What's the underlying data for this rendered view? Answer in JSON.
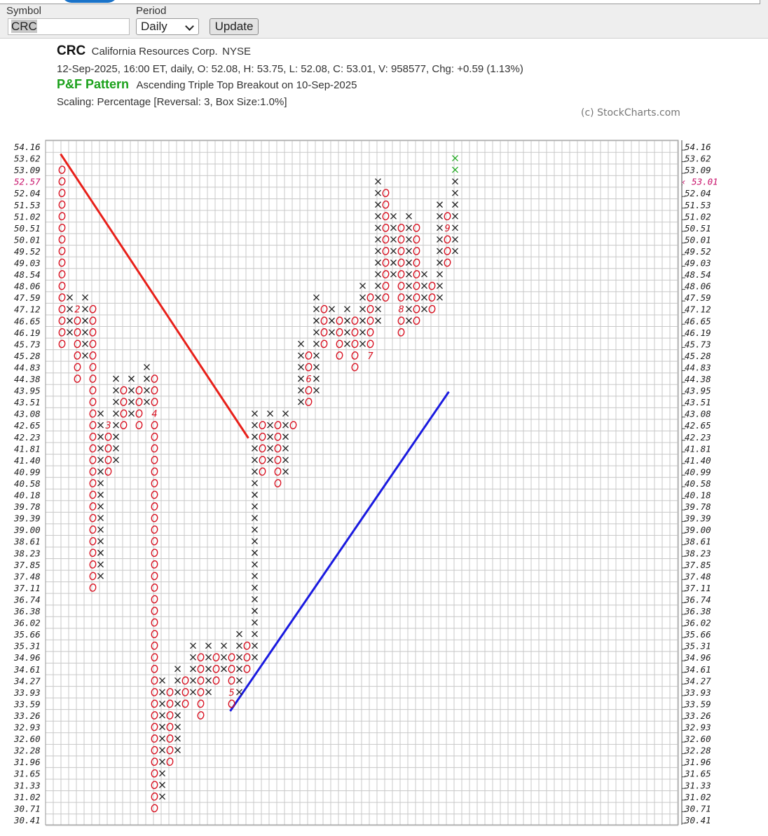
{
  "form": {
    "symbol_label": "Symbol",
    "symbol_value": "CRC",
    "period_label": "Period",
    "period_value": "Daily",
    "update_label": "Update"
  },
  "header": {
    "ticker": "CRC",
    "company": "California Resources Corp.",
    "exchange": "NYSE",
    "quote": "12-Sep-2025, 16:00 ET, daily, O: 52.08, H: 53.75, L: 52.08, C: 53.01, V: 958577, Chg: +0.59 (1.13%)",
    "pf_label": "P&F Pattern",
    "pattern": "Ascending Triple Top Breakout on 10-Sep-2025",
    "scaling": "Scaling: Percentage [Reversal: 3, Box Size:1.0%]",
    "copyright": "(c) StockCharts.com"
  },
  "chart_data": {
    "type": "point-and-figure",
    "price_levels": [
      "54.16",
      "53.62",
      "53.09",
      "52.57",
      "52.04",
      "51.53",
      "51.02",
      "50.51",
      "50.01",
      "49.52",
      "49.03",
      "48.54",
      "48.06",
      "47.59",
      "47.12",
      "46.65",
      "46.19",
      "45.73",
      "45.28",
      "44.83",
      "44.38",
      "43.95",
      "43.51",
      "43.08",
      "42.65",
      "42.23",
      "41.81",
      "41.40",
      "40.99",
      "40.58",
      "40.18",
      "39.78",
      "39.39",
      "39.00",
      "38.61",
      "38.23",
      "37.85",
      "37.48",
      "37.11",
      "36.74",
      "36.38",
      "36.02",
      "35.66",
      "35.31",
      "34.96",
      "34.61",
      "34.27",
      "33.93",
      "33.59",
      "33.26",
      "32.93",
      "32.60",
      "32.28",
      "31.96",
      "31.65",
      "31.33",
      "31.02",
      "30.71",
      "30.41"
    ],
    "highlight_left_level": "52.57",
    "last_price_label": "‹ 53.01",
    "columns": [
      {
        "t": "O",
        "top": 53.09,
        "bot": 45.73
      },
      {
        "t": "X",
        "top": 47.59,
        "bot": 46.19
      },
      {
        "t": "O",
        "top": 47.12,
        "bot": 44.38,
        "m": [
          [
            47.12,
            "2"
          ]
        ]
      },
      {
        "t": "X",
        "top": 47.59,
        "bot": 45.28
      },
      {
        "t": "O",
        "top": 47.12,
        "bot": 37.11
      },
      {
        "t": "X",
        "top": 43.08,
        "bot": 37.48
      },
      {
        "t": "O",
        "top": 42.65,
        "bot": 40.99,
        "m": [
          [
            42.65,
            "3"
          ]
        ]
      },
      {
        "t": "X",
        "top": 44.38,
        "bot": 41.4
      },
      {
        "t": "O",
        "top": 43.95,
        "bot": 42.65
      },
      {
        "t": "X",
        "top": 44.38,
        "bot": 43.08
      },
      {
        "t": "O",
        "top": 43.95,
        "bot": 42.65
      },
      {
        "t": "X",
        "top": 44.83,
        "bot": 43.51
      },
      {
        "t": "O",
        "top": 44.38,
        "bot": 30.71,
        "m": [
          [
            43.08,
            "4"
          ]
        ]
      },
      {
        "t": "X",
        "top": 34.27,
        "bot": 31.02
      },
      {
        "t": "O",
        "top": 33.93,
        "bot": 31.96
      },
      {
        "t": "X",
        "top": 34.61,
        "bot": 32.28
      },
      {
        "t": "O",
        "top": 34.27,
        "bot": 33.59
      },
      {
        "t": "X",
        "top": 35.31,
        "bot": 33.93
      },
      {
        "t": "O",
        "top": 34.96,
        "bot": 33.26
      },
      {
        "t": "X",
        "top": 35.31,
        "bot": 33.93
      },
      {
        "t": "O",
        "top": 34.96,
        "bot": 34.27
      },
      {
        "t": "X",
        "top": 35.31,
        "bot": 34.61
      },
      {
        "t": "O",
        "top": 34.96,
        "bot": 33.59,
        "m": [
          [
            33.93,
            "5"
          ]
        ]
      },
      {
        "t": "X",
        "top": 35.66,
        "bot": 33.93
      },
      {
        "t": "O",
        "top": 35.31,
        "bot": 34.61
      },
      {
        "t": "X",
        "top": 43.08,
        "bot": 34.96
      },
      {
        "t": "O",
        "top": 42.65,
        "bot": 40.99
      },
      {
        "t": "X",
        "top": 43.08,
        "bot": 41.4
      },
      {
        "t": "O",
        "top": 42.65,
        "bot": 40.58
      },
      {
        "t": "X",
        "top": 43.08,
        "bot": 40.99
      },
      {
        "t": "O",
        "top": 42.65,
        "bot": 42.65
      },
      {
        "t": "X",
        "top": 45.73,
        "bot": 43.51
      },
      {
        "t": "O",
        "top": 45.28,
        "bot": 43.51,
        "m": [
          [
            44.38,
            "6"
          ]
        ]
      },
      {
        "t": "X",
        "top": 47.59,
        "bot": 43.95
      },
      {
        "t": "O",
        "top": 47.12,
        "bot": 45.73
      },
      {
        "t": "X",
        "top": 47.12,
        "bot": 46.19
      },
      {
        "t": "O",
        "top": 46.65,
        "bot": 45.28
      },
      {
        "t": "X",
        "top": 47.12,
        "bot": 45.73
      },
      {
        "t": "O",
        "top": 46.65,
        "bot": 44.83
      },
      {
        "t": "X",
        "top": 48.06,
        "bot": 45.73
      },
      {
        "t": "O",
        "top": 47.59,
        "bot": 45.28,
        "m": [
          [
            45.28,
            "7"
          ]
        ]
      },
      {
        "t": "X",
        "top": 52.57,
        "bot": 46.65
      },
      {
        "t": "O",
        "top": 52.04,
        "bot": 47.59
      },
      {
        "t": "X",
        "top": 51.02,
        "bot": 48.54
      },
      {
        "t": "O",
        "top": 50.51,
        "bot": 46.19,
        "m": [
          [
            47.12,
            "8"
          ]
        ]
      },
      {
        "t": "X",
        "top": 51.02,
        "bot": 46.65
      },
      {
        "t": "O",
        "top": 50.51,
        "bot": 46.65
      },
      {
        "t": "X",
        "top": 48.54,
        "bot": 47.12
      },
      {
        "t": "O",
        "top": 48.06,
        "bot": 47.12
      },
      {
        "t": "X",
        "top": 51.53,
        "bot": 47.59
      },
      {
        "t": "O",
        "top": 51.02,
        "bot": 49.03,
        "m": [
          [
            50.51,
            "9"
          ]
        ]
      },
      {
        "t": "X",
        "top": 53.62,
        "bot": 49.52,
        "green": [
          53.62,
          53.09
        ]
      }
    ],
    "trendlines": [
      {
        "color": "#e8201a",
        "from_col": 0,
        "from_price": 53.62,
        "to_col": 24,
        "to_price": 42.23
      },
      {
        "color": "#1a1ae0",
        "from_col": 22,
        "from_price": 33.26,
        "to_col": 50,
        "to_price": 43.95
      }
    ],
    "colors": {
      "x": "#222222",
      "o": "#d81020",
      "green": "#22aa22",
      "grid": "#c8c8c8"
    }
  }
}
